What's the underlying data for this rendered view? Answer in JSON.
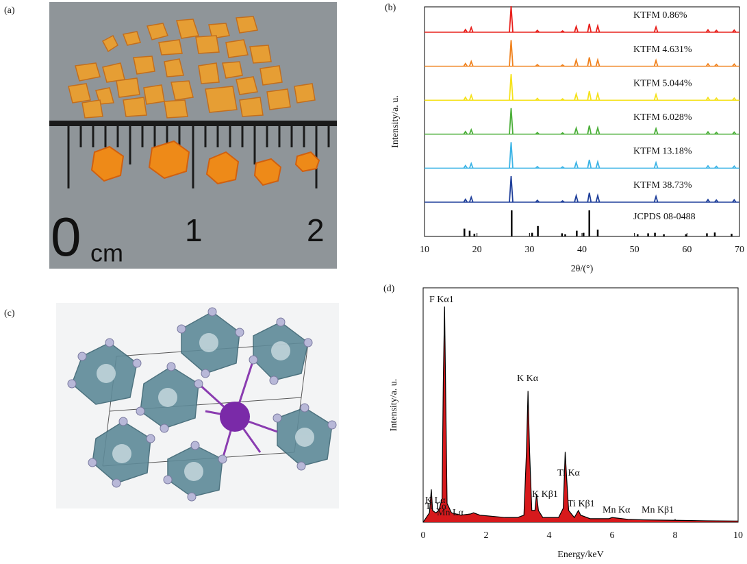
{
  "figure_a": {
    "label": "(a)",
    "ruler_labels": [
      "0",
      "cm",
      "1",
      "2"
    ]
  },
  "figure_c": {
    "label": "(c)"
  },
  "chart_data": [
    {
      "type": "spectra",
      "label": "(b)",
      "xlabel": "2θ/(°)",
      "ylabel": "Intensity/a. u.",
      "xlim": [
        10,
        70
      ],
      "xticks": [
        10,
        20,
        30,
        40,
        50,
        60,
        70
      ],
      "ylim": [
        0,
        100
      ],
      "x": [
        17.8,
        18.9,
        26.5,
        31.5,
        36.3,
        38.9,
        41.4,
        43.0,
        54.1,
        64.0,
        65.6,
        69.0
      ],
      "series": [
        {
          "name": "KTFM 0.86%",
          "color": "#e8201c",
          "values": [
            10,
            18,
            100,
            7,
            5,
            22,
            32,
            24,
            20,
            9,
            7,
            8
          ]
        },
        {
          "name": "KTFM 4.631%",
          "color": "#f0821e",
          "values": [
            10,
            18,
            100,
            6,
            5,
            24,
            34,
            24,
            22,
            9,
            7,
            8
          ]
        },
        {
          "name": "KTFM 5.044%",
          "color": "#f5e21a",
          "values": [
            11,
            19,
            100,
            7,
            5,
            24,
            35,
            25,
            22,
            10,
            8,
            8
          ]
        },
        {
          "name": "KTFM 6.028%",
          "color": "#4caf3a",
          "values": [
            10,
            17,
            100,
            6,
            5,
            23,
            33,
            24,
            21,
            9,
            7,
            8
          ]
        },
        {
          "name": "KTFM 13.18%",
          "color": "#3cb4e6",
          "values": [
            10,
            18,
            100,
            6,
            5,
            22,
            32,
            24,
            21,
            9,
            7,
            8
          ]
        },
        {
          "name": "KTFM 38.73%",
          "color": "#1f3f9a",
          "values": [
            11,
            19,
            100,
            7,
            5,
            25,
            36,
            25,
            22,
            10,
            8,
            9
          ]
        }
      ],
      "reference": {
        "name": "JCPDS 08-0488",
        "color": "#000000",
        "x": [
          17.6,
          18.6,
          19.5,
          26.6,
          30.5,
          31.6,
          36.2,
          36.8,
          39.0,
          40.3,
          41.4,
          43.0,
          50.6,
          52.6,
          53.9,
          55.6,
          59.8,
          63.8,
          65.3,
          68.5
        ],
        "values": [
          30,
          22,
          10,
          100,
          14,
          40,
          12,
          8,
          22,
          14,
          100,
          26,
          8,
          12,
          14,
          8,
          8,
          12,
          15,
          10
        ]
      }
    },
    {
      "type": "area",
      "label": "(d)",
      "xlabel": "Energy/keV",
      "ylabel": "Intensity/a. u.",
      "xlim": [
        0,
        10
      ],
      "xticks": [
        0,
        2,
        4,
        6,
        8,
        10
      ],
      "ylim": [
        0,
        100
      ],
      "color": "#d7191c",
      "x": [
        0.0,
        0.1,
        0.2,
        0.26,
        0.3,
        0.4,
        0.5,
        0.6,
        0.64,
        0.68,
        0.72,
        0.76,
        0.9,
        1.2,
        1.5,
        1.6,
        1.8,
        2.2,
        2.6,
        3.0,
        3.2,
        3.28,
        3.33,
        3.38,
        3.45,
        3.55,
        3.6,
        3.66,
        3.8,
        4.3,
        4.45,
        4.51,
        4.56,
        4.62,
        4.8,
        4.93,
        5.0,
        5.3,
        5.9,
        6.0,
        6.5,
        7.0,
        8.0,
        9.0,
        10.0
      ],
      "values": [
        0,
        2,
        4,
        14,
        5,
        4,
        5,
        10,
        60,
        92,
        50,
        8,
        4,
        3,
        3.5,
        4,
        3,
        2.5,
        2,
        2,
        3,
        30,
        56,
        30,
        5,
        5,
        12,
        5,
        2,
        2,
        6,
        30,
        18,
        5,
        2,
        5,
        3,
        1.5,
        1.5,
        2,
        1.2,
        1,
        0.8,
        0.6,
        0.5
      ],
      "annotations": [
        "F Kα1",
        "K Lα",
        "Mn Lα",
        "Ti Lα",
        "K Kα",
        "K Kβ1",
        "Ti Kα",
        "Ti Kβ1",
        "Mn Kα",
        "Mn Kβ1"
      ]
    }
  ]
}
